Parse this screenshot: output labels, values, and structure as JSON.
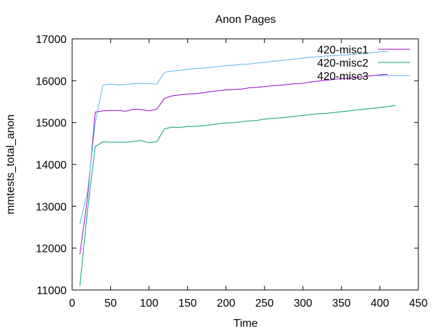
{
  "chart_data": {
    "type": "line",
    "title": "Anon Pages",
    "xlabel": "Time",
    "ylabel": "mmtests_total_anon",
    "xlim": [
      0,
      450
    ],
    "ylim": [
      11000,
      17000
    ],
    "xticks": [
      0,
      50,
      100,
      150,
      200,
      250,
      300,
      350,
      400,
      450
    ],
    "yticks": [
      11000,
      12000,
      13000,
      14000,
      15000,
      16000,
      17000
    ],
    "grid": false,
    "legend_position": "top-right",
    "series": [
      {
        "name": "420-misc1",
        "color": "#9400d3",
        "x": [
          10,
          20,
          30,
          40,
          50,
          60,
          70,
          80,
          90,
          100,
          110,
          120,
          130,
          140,
          150,
          160,
          170,
          180,
          190,
          200,
          210,
          220,
          230,
          240,
          250,
          260,
          270,
          280,
          290,
          300,
          310,
          320,
          330,
          340,
          350,
          360,
          370,
          380,
          390,
          400,
          410
        ],
        "y": [
          11850,
          13200,
          15250,
          15280,
          15290,
          15290,
          15270,
          15320,
          15310,
          15280,
          15320,
          15580,
          15640,
          15660,
          15680,
          15690,
          15710,
          15740,
          15760,
          15780,
          15790,
          15800,
          15830,
          15840,
          15860,
          15880,
          15890,
          15910,
          15930,
          15940,
          15970,
          15990,
          16010,
          16030,
          16050,
          16060,
          16080,
          16100,
          16120,
          16140,
          16150
        ]
      },
      {
        "name": "420-misc2",
        "color": "#009e73",
        "x": [
          10,
          20,
          30,
          40,
          50,
          60,
          70,
          80,
          90,
          100,
          110,
          120,
          130,
          140,
          150,
          160,
          170,
          180,
          190,
          200,
          210,
          220,
          230,
          240,
          250,
          260,
          270,
          280,
          290,
          300,
          310,
          320,
          330,
          340,
          350,
          360,
          370,
          380,
          390,
          400,
          410,
          420
        ],
        "y": [
          11100,
          12900,
          14430,
          14540,
          14530,
          14530,
          14530,
          14550,
          14570,
          14520,
          14540,
          14850,
          14890,
          14880,
          14910,
          14910,
          14920,
          14950,
          14970,
          14990,
          15000,
          15020,
          15040,
          15050,
          15080,
          15100,
          15110,
          15130,
          15150,
          15170,
          15190,
          15210,
          15220,
          15240,
          15260,
          15280,
          15300,
          15320,
          15340,
          15360,
          15380,
          15410
        ]
      },
      {
        "name": "420-misc3",
        "color": "#56b4e9",
        "x": [
          10,
          20,
          30,
          40,
          50,
          60,
          70,
          80,
          90,
          100,
          110,
          120,
          130,
          140,
          150,
          160,
          170,
          180,
          190,
          200,
          210,
          220,
          230,
          240,
          250,
          260,
          270,
          280,
          290,
          300,
          310,
          320,
          330,
          340,
          350,
          360,
          370,
          380,
          390,
          400,
          410
        ],
        "y": [
          12580,
          13350,
          15000,
          15900,
          15920,
          15900,
          15910,
          15930,
          15940,
          15930,
          15920,
          16200,
          16230,
          16250,
          16270,
          16290,
          16300,
          16320,
          16340,
          16360,
          16370,
          16390,
          16400,
          16420,
          16440,
          16460,
          16480,
          16500,
          16520,
          16540,
          16560,
          16570,
          16590,
          16600,
          16610,
          16620,
          16640,
          16650,
          16670,
          16690,
          16700
        ]
      }
    ]
  }
}
